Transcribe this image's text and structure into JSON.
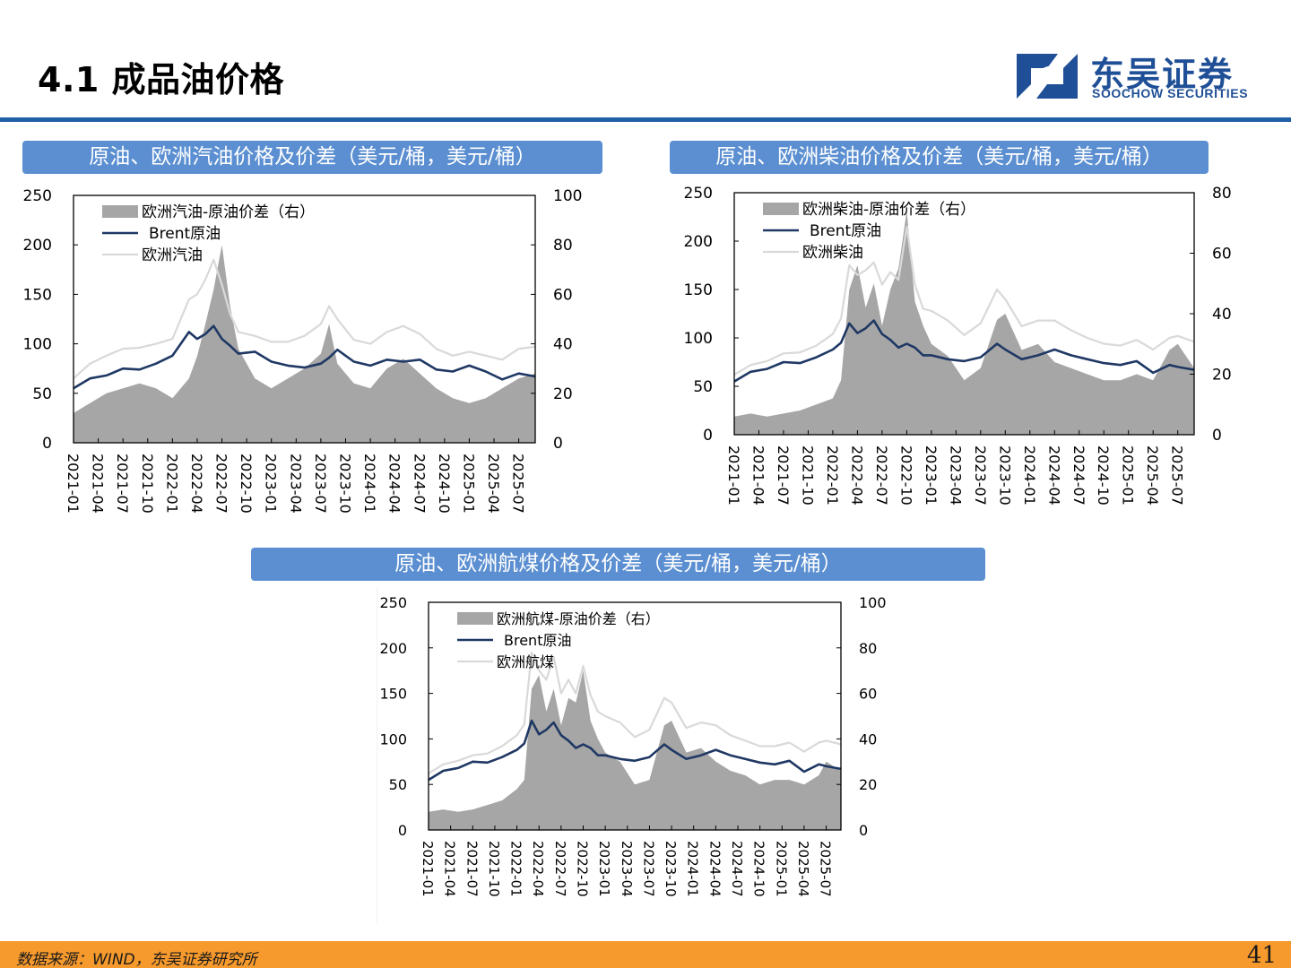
{
  "header": {
    "title": "4.1 成品油价格",
    "logo_cn": "东吴证券",
    "logo_en": "SOOCHOW SECURITIES"
  },
  "colors": {
    "accent": "#1f5fa6",
    "panel_title_bg": "#5b8fd1",
    "spread_fill": "#a6a6a6",
    "brent_line": "#1f3864",
    "product_line": "#d9d9d9",
    "footer_bg": "#f79a2d"
  },
  "panels": [
    {
      "title": "原油、欧洲汽油价格及价差（美元/桶，美元/桶）"
    },
    {
      "title": "原油、欧洲柴油价格及价差（美元/桶，美元/桶）"
    },
    {
      "title": "原油、欧洲航煤价格及价差（美元/桶，美元/桶）"
    }
  ],
  "footer": {
    "source": "数据来源：WIND，东吴证券研究所",
    "page_number": "41"
  },
  "chart_data": [
    {
      "type": "area",
      "x_start": "2021-01",
      "x_end": "2025-09",
      "x_ticks": [
        "2021-01",
        "2021-04",
        "2021-07",
        "2021-10",
        "2022-01",
        "2022-04",
        "2022-07",
        "2022-10",
        "2023-01",
        "2023-04",
        "2023-07",
        "2023-10",
        "2024-01",
        "2024-04",
        "2024-07",
        "2024-10",
        "2025-01",
        "2025-04",
        "2025-07"
      ],
      "ylim_left": [
        0,
        250
      ],
      "yticks_left": [
        0,
        50,
        100,
        150,
        200,
        250
      ],
      "ylim_right": [
        0,
        100
      ],
      "yticks_right": [
        0,
        20,
        40,
        60,
        80,
        100
      ],
      "legend_position": "top-left",
      "grid": false,
      "series": [
        {
          "name": "欧洲汽油-原油价差（右）",
          "axis": "right",
          "type": "area",
          "x": [
            "2021-01",
            "2021-03",
            "2021-05",
            "2021-07",
            "2021-09",
            "2021-11",
            "2022-01",
            "2022-03",
            "2022-04",
            "2022-05",
            "2022-06",
            "2022-07",
            "2022-08",
            "2022-09",
            "2022-11",
            "2023-01",
            "2023-03",
            "2023-05",
            "2023-07",
            "2023-08",
            "2023-09",
            "2023-11",
            "2024-01",
            "2024-03",
            "2024-05",
            "2024-07",
            "2024-09",
            "2024-11",
            "2025-01",
            "2025-03",
            "2025-05",
            "2025-07",
            "2025-09"
          ],
          "values": [
            12,
            16,
            20,
            22,
            24,
            22,
            18,
            26,
            35,
            48,
            62,
            80,
            55,
            38,
            26,
            22,
            26,
            30,
            36,
            48,
            32,
            24,
            22,
            30,
            34,
            28,
            22,
            18,
            16,
            18,
            22,
            26,
            28
          ]
        },
        {
          "name": "Brent原油",
          "axis": "left",
          "type": "line",
          "x": [
            "2021-01",
            "2021-03",
            "2021-05",
            "2021-07",
            "2021-09",
            "2021-11",
            "2022-01",
            "2022-03",
            "2022-04",
            "2022-05",
            "2022-06",
            "2022-07",
            "2022-08",
            "2022-09",
            "2022-11",
            "2023-01",
            "2023-03",
            "2023-05",
            "2023-07",
            "2023-08",
            "2023-09",
            "2023-11",
            "2024-01",
            "2024-03",
            "2024-05",
            "2024-07",
            "2024-09",
            "2024-11",
            "2025-01",
            "2025-03",
            "2025-05",
            "2025-07",
            "2025-09"
          ],
          "values": [
            55,
            65,
            68,
            75,
            74,
            80,
            88,
            112,
            105,
            110,
            118,
            105,
            98,
            90,
            92,
            82,
            78,
            76,
            80,
            86,
            94,
            82,
            78,
            84,
            82,
            84,
            74,
            72,
            78,
            72,
            64,
            70,
            67
          ]
        },
        {
          "name": "欧洲汽油",
          "axis": "left",
          "type": "line",
          "x": [
            "2021-01",
            "2021-03",
            "2021-05",
            "2021-07",
            "2021-09",
            "2021-11",
            "2022-01",
            "2022-03",
            "2022-04",
            "2022-05",
            "2022-06",
            "2022-07",
            "2022-08",
            "2022-09",
            "2022-11",
            "2023-01",
            "2023-03",
            "2023-05",
            "2023-07",
            "2023-08",
            "2023-09",
            "2023-11",
            "2024-01",
            "2024-03",
            "2024-05",
            "2024-07",
            "2024-09",
            "2024-11",
            "2025-01",
            "2025-03",
            "2025-05",
            "2025-07",
            "2025-09"
          ],
          "values": [
            65,
            80,
            88,
            95,
            96,
            100,
            105,
            145,
            150,
            165,
            185,
            160,
            130,
            112,
            108,
            102,
            102,
            108,
            120,
            138,
            125,
            104,
            100,
            112,
            118,
            110,
            95,
            88,
            92,
            88,
            84,
            95,
            97
          ]
        }
      ]
    },
    {
      "type": "area",
      "x_start": "2021-01",
      "x_end": "2025-09",
      "x_ticks": [
        "2021-01",
        "2021-04",
        "2021-07",
        "2021-10",
        "2022-01",
        "2022-04",
        "2022-07",
        "2022-10",
        "2023-01",
        "2023-04",
        "2023-07",
        "2023-10",
        "2024-01",
        "2024-04",
        "2024-07",
        "2024-10",
        "2025-01",
        "2025-04",
        "2025-07"
      ],
      "ylim_left": [
        0,
        250
      ],
      "yticks_left": [
        0,
        50,
        100,
        150,
        200,
        250
      ],
      "ylim_right": [
        0,
        80
      ],
      "yticks_right": [
        0,
        20,
        40,
        60,
        80
      ],
      "legend_position": "top-left",
      "grid": false,
      "series": [
        {
          "name": "欧洲柴油-原油价差（右）",
          "axis": "right",
          "type": "area",
          "x": [
            "2021-01",
            "2021-03",
            "2021-05",
            "2021-07",
            "2021-09",
            "2021-11",
            "2022-01",
            "2022-02",
            "2022-03",
            "2022-04",
            "2022-05",
            "2022-06",
            "2022-07",
            "2022-08",
            "2022-09",
            "2022-10",
            "2022-11",
            "2022-12",
            "2023-01",
            "2023-03",
            "2023-05",
            "2023-07",
            "2023-09",
            "2023-10",
            "2023-12",
            "2024-02",
            "2024-04",
            "2024-06",
            "2024-08",
            "2024-10",
            "2024-12",
            "2025-02",
            "2025-04",
            "2025-06",
            "2025-07",
            "2025-09"
          ],
          "values": [
            6,
            7,
            6,
            7,
            8,
            10,
            12,
            18,
            48,
            56,
            42,
            50,
            36,
            48,
            55,
            74,
            44,
            36,
            30,
            26,
            18,
            22,
            38,
            40,
            28,
            30,
            24,
            22,
            20,
            18,
            18,
            20,
            18,
            28,
            30,
            22
          ]
        },
        {
          "name": "Brent原油",
          "axis": "left",
          "type": "line",
          "x": [
            "2021-01",
            "2021-03",
            "2021-05",
            "2021-07",
            "2021-09",
            "2021-11",
            "2022-01",
            "2022-02",
            "2022-03",
            "2022-04",
            "2022-05",
            "2022-06",
            "2022-07",
            "2022-08",
            "2022-09",
            "2022-10",
            "2022-11",
            "2022-12",
            "2023-01",
            "2023-03",
            "2023-05",
            "2023-07",
            "2023-09",
            "2023-10",
            "2023-12",
            "2024-02",
            "2024-04",
            "2024-06",
            "2024-08",
            "2024-10",
            "2024-12",
            "2025-02",
            "2025-04",
            "2025-06",
            "2025-07",
            "2025-09"
          ],
          "values": [
            55,
            65,
            68,
            75,
            74,
            80,
            88,
            95,
            115,
            105,
            110,
            118,
            104,
            98,
            90,
            94,
            90,
            82,
            82,
            78,
            76,
            80,
            94,
            88,
            78,
            82,
            88,
            82,
            78,
            74,
            72,
            76,
            64,
            72,
            70,
            67
          ]
        },
        {
          "name": "欧洲柴油",
          "axis": "left",
          "type": "line",
          "x": [
            "2021-01",
            "2021-03",
            "2021-05",
            "2021-07",
            "2021-09",
            "2021-11",
            "2022-01",
            "2022-02",
            "2022-03",
            "2022-04",
            "2022-05",
            "2022-06",
            "2022-07",
            "2022-08",
            "2022-09",
            "2022-10",
            "2022-11",
            "2022-12",
            "2023-01",
            "2023-03",
            "2023-05",
            "2023-07",
            "2023-09",
            "2023-10",
            "2023-12",
            "2024-02",
            "2024-04",
            "2024-06",
            "2024-08",
            "2024-10",
            "2024-12",
            "2025-02",
            "2025-04",
            "2025-06",
            "2025-07",
            "2025-09"
          ],
          "values": [
            62,
            72,
            76,
            84,
            85,
            92,
            104,
            120,
            175,
            165,
            170,
            178,
            155,
            168,
            160,
            215,
            155,
            130,
            128,
            118,
            103,
            115,
            150,
            140,
            112,
            118,
            118,
            108,
            100,
            94,
            92,
            98,
            88,
            100,
            102,
            96
          ]
        }
      ]
    },
    {
      "type": "area",
      "x_start": "2021-01",
      "x_end": "2025-09",
      "x_ticks": [
        "2021-01",
        "2021-04",
        "2021-07",
        "2021-10",
        "2022-01",
        "2022-04",
        "2022-07",
        "2022-10",
        "2023-01",
        "2023-04",
        "2023-07",
        "2023-10",
        "2024-01",
        "2024-04",
        "2024-07",
        "2024-10",
        "2025-01",
        "2025-04",
        "2025-07"
      ],
      "ylim_left": [
        0,
        250
      ],
      "yticks_left": [
        0,
        50,
        100,
        150,
        200,
        250
      ],
      "ylim_right": [
        0,
        100
      ],
      "yticks_right": [
        0,
        20,
        40,
        60,
        80,
        100
      ],
      "legend_position": "top-left",
      "grid": false,
      "series": [
        {
          "name": "欧洲航煤-原油价差（右）",
          "axis": "right",
          "type": "area",
          "x": [
            "2021-01",
            "2021-03",
            "2021-05",
            "2021-07",
            "2021-09",
            "2021-11",
            "2022-01",
            "2022-02",
            "2022-03",
            "2022-04",
            "2022-05",
            "2022-06",
            "2022-07",
            "2022-08",
            "2022-09",
            "2022-10",
            "2022-11",
            "2022-12",
            "2023-01",
            "2023-03",
            "2023-05",
            "2023-07",
            "2023-09",
            "2023-10",
            "2023-12",
            "2024-02",
            "2024-04",
            "2024-06",
            "2024-08",
            "2024-10",
            "2024-12",
            "2025-02",
            "2025-04",
            "2025-06",
            "2025-07",
            "2025-09"
          ],
          "values": [
            8,
            9,
            8,
            9,
            11,
            13,
            18,
            22,
            62,
            68,
            52,
            62,
            46,
            58,
            56,
            70,
            48,
            40,
            34,
            30,
            20,
            22,
            46,
            48,
            34,
            36,
            30,
            26,
            24,
            20,
            22,
            22,
            20,
            24,
            30,
            26
          ]
        },
        {
          "name": "Brent原油",
          "axis": "left",
          "type": "line",
          "x": [
            "2021-01",
            "2021-03",
            "2021-05",
            "2021-07",
            "2021-09",
            "2021-11",
            "2022-01",
            "2022-02",
            "2022-03",
            "2022-04",
            "2022-05",
            "2022-06",
            "2022-07",
            "2022-08",
            "2022-09",
            "2022-10",
            "2022-11",
            "2022-12",
            "2023-01",
            "2023-03",
            "2023-05",
            "2023-07",
            "2023-09",
            "2023-10",
            "2023-12",
            "2024-02",
            "2024-04",
            "2024-06",
            "2024-08",
            "2024-10",
            "2024-12",
            "2025-02",
            "2025-04",
            "2025-06",
            "2025-07",
            "2025-09"
          ],
          "values": [
            55,
            65,
            68,
            75,
            74,
            80,
            88,
            95,
            120,
            105,
            110,
            118,
            104,
            98,
            90,
            94,
            90,
            82,
            82,
            78,
            76,
            80,
            94,
            88,
            78,
            82,
            88,
            82,
            78,
            74,
            72,
            76,
            64,
            72,
            70,
            67
          ]
        },
        {
          "name": "欧洲航煤",
          "axis": "left",
          "type": "line",
          "x": [
            "2021-01",
            "2021-03",
            "2021-05",
            "2021-07",
            "2021-09",
            "2021-11",
            "2022-01",
            "2022-02",
            "2022-03",
            "2022-04",
            "2022-05",
            "2022-06",
            "2022-07",
            "2022-08",
            "2022-09",
            "2022-10",
            "2022-11",
            "2022-12",
            "2023-01",
            "2023-03",
            "2023-05",
            "2023-07",
            "2023-09",
            "2023-10",
            "2023-12",
            "2024-02",
            "2024-04",
            "2024-06",
            "2024-08",
            "2024-10",
            "2024-12",
            "2025-02",
            "2025-04",
            "2025-06",
            "2025-07",
            "2025-09"
          ],
          "values": [
            62,
            72,
            76,
            82,
            84,
            92,
            104,
            116,
            195,
            175,
            165,
            190,
            150,
            165,
            150,
            180,
            148,
            130,
            125,
            118,
            102,
            110,
            145,
            140,
            112,
            118,
            115,
            104,
            98,
            92,
            92,
            96,
            86,
            96,
            98,
            94
          ]
        }
      ]
    }
  ]
}
